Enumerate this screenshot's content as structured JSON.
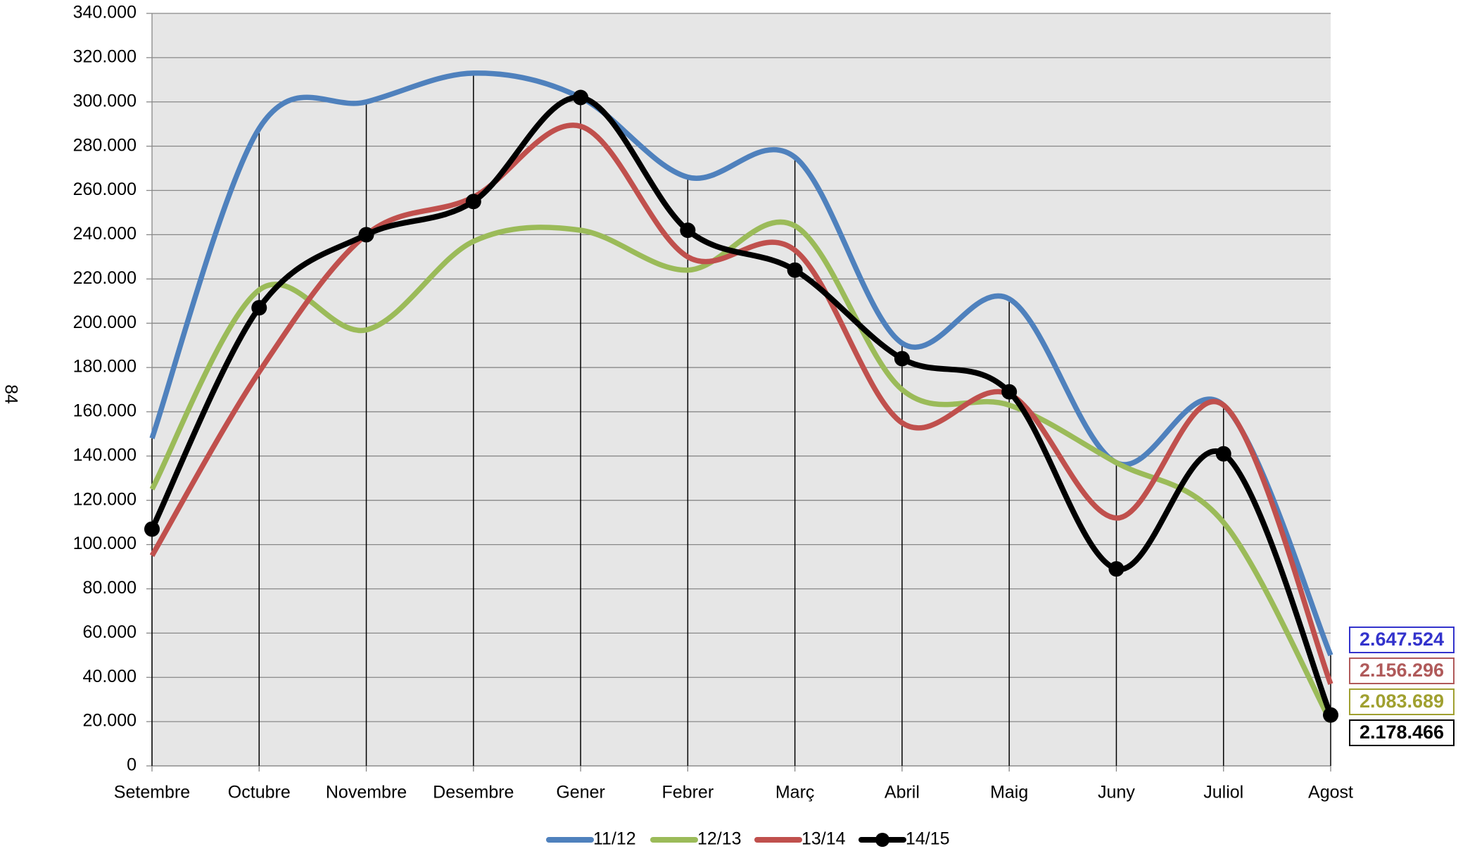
{
  "page_number": "84",
  "chart_data": {
    "type": "line",
    "smooth": true,
    "grid": true,
    "legend": "bottom",
    "categories": [
      "Setembre",
      "Octubre",
      "Novembre",
      "Desembre",
      "Gener",
      "Febrer",
      "Març",
      "Abril",
      "Maig",
      "Juny",
      "Juliol",
      "Agost"
    ],
    "ylim": [
      0,
      340000
    ],
    "yticks": [
      0,
      {
        "value": 20000,
        "label": "20.000"
      },
      {
        "value": 40000,
        "label": "40.000"
      },
      {
        "value": 60000,
        "label": "60.000"
      },
      {
        "value": 80000,
        "label": "80.000"
      },
      {
        "value": 100000,
        "label": "100.000"
      },
      {
        "value": 120000,
        "label": "120.000"
      },
      {
        "value": 140000,
        "label": "140.000"
      },
      {
        "value": 160000,
        "label": "160.000"
      },
      {
        "value": 180000,
        "label": "180.000"
      },
      {
        "value": 200000,
        "label": "200.000"
      },
      {
        "value": 220000,
        "label": "220.000"
      },
      {
        "value": 240000,
        "label": "240.000"
      },
      {
        "value": 260000,
        "label": "260.000"
      },
      {
        "value": 280000,
        "label": "280.000"
      },
      {
        "value": 300000,
        "label": "300.000"
      },
      {
        "value": 320000,
        "label": "320.000"
      },
      {
        "value": 340000,
        "label": "340.000"
      }
    ],
    "series": [
      {
        "name": "11/12",
        "color": "#4f81bd",
        "marker": false,
        "values": [
          148000,
          288000,
          300000,
          313000,
          302000,
          266000,
          275000,
          191000,
          211000,
          137000,
          163000,
          50000
        ],
        "total": {
          "value": 2647524,
          "label": "2.647.524"
        },
        "total_color": "#3333cc"
      },
      {
        "name": "12/13",
        "color": "#9bbb59",
        "marker": false,
        "values": [
          125000,
          215000,
          197000,
          237000,
          242000,
          224000,
          244000,
          170000,
          163000,
          137000,
          110000,
          20000
        ],
        "total": {
          "value": 2083689,
          "label": "2.083.689"
        },
        "total_color": "#a0a030"
      },
      {
        "name": "13/14",
        "color": "#c0504d",
        "marker": false,
        "values": [
          95000,
          178000,
          240000,
          257000,
          289000,
          230000,
          233000,
          155000,
          168000,
          112000,
          163000,
          37000
        ],
        "total": {
          "value": 2156296,
          "label": "2.156.296"
        },
        "total_color": "#b05a5a"
      },
      {
        "name": "14/15",
        "color": "#000000",
        "marker": true,
        "values": [
          107000,
          207000,
          240000,
          255000,
          302000,
          242000,
          224000,
          184000,
          169000,
          89000,
          141000,
          23000
        ],
        "total": {
          "value": 2178466,
          "label": "2.178.466"
        },
        "total_color": "#000000"
      }
    ],
    "totals_order": [
      0,
      2,
      1,
      3
    ]
  }
}
